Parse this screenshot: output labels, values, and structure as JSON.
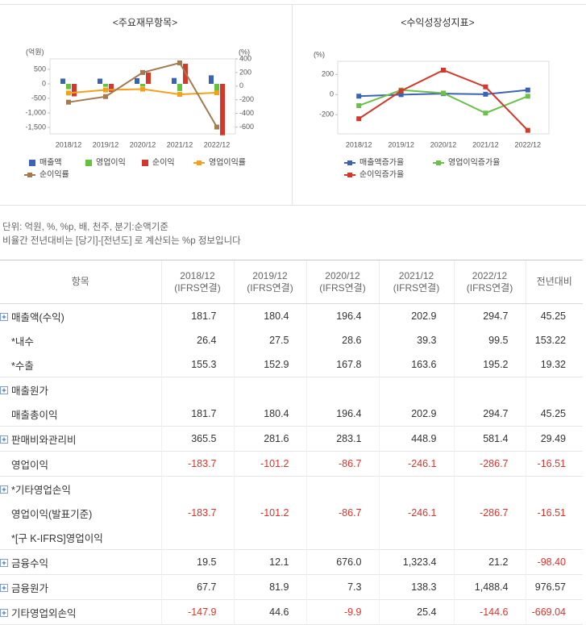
{
  "chart_data": [
    {
      "type": "combo",
      "title": "<주요재무항목>",
      "ylabel": "(억원)",
      "y2label": "(%)",
      "categories": [
        "2018/12",
        "2019/12",
        "2020/12",
        "2021/12",
        "2022/12"
      ],
      "ylim": [
        -1720,
        860
      ],
      "yticks": [
        500,
        0,
        -500,
        {
          "value": -1000,
          "label": "-1,000"
        },
        {
          "value": -1500,
          "label": "-1,500"
        }
      ],
      "y2lim": [
        -700,
        400
      ],
      "y2ticks": [
        400,
        200,
        0,
        -200,
        -400,
        -600
      ],
      "series": [
        {
          "name": "매출액",
          "kind": "bar",
          "color": "#3b63b3",
          "values": [
            181.7,
            180.4,
            196.4,
            202.9,
            294.7
          ]
        },
        {
          "name": "영업이익",
          "kind": "bar",
          "color": "#62c43d",
          "values": [
            -183.7,
            -101.2,
            -86.7,
            -246.1,
            -286.7
          ]
        },
        {
          "name": "순이익",
          "kind": "bar",
          "color": "#d3382b",
          "values": [
            -430,
            -276,
            393,
            692,
            -1768
          ]
        },
        {
          "name": "영업이익률",
          "kind": "line",
          "axis": "y2",
          "color": "#f5a01a",
          "values": [
            -101,
            -56,
            -44,
            -121,
            -97
          ]
        },
        {
          "name": "순이익률",
          "kind": "line",
          "axis": "y2",
          "color": "#a47a4e",
          "values": [
            -235,
            -153,
            200,
            341,
            -600
          ]
        }
      ]
    },
    {
      "type": "line",
      "title": "<수익성장성지표>",
      "ylabel": "(%)",
      "categories": [
        "2018/12",
        "2019/12",
        "2020/12",
        "2021/12",
        "2022/12"
      ],
      "ylim": [
        -390,
        330
      ],
      "yticks": [
        200,
        0,
        -200
      ],
      "series": [
        {
          "name": "매출액증가율",
          "color": "#3b63b3",
          "values": [
            -16,
            -0.7,
            8.9,
            3.3,
            45.2
          ]
        },
        {
          "name": "영업이익증가율",
          "color": "#6cc04a",
          "values": [
            -110,
            44.9,
            14.3,
            -183.8,
            -16.5
          ]
        },
        {
          "name": "순이익증가율",
          "color": "#d3382b",
          "values": [
            -240,
            35.8,
            242,
            76,
            -355
          ]
        }
      ]
    }
  ],
  "notes": [
    "단위: 억원, %, %p, 배, 천주, 분기:순액기준",
    "비율간 전년대비는 [당기]-[전년도] 로 계산되는 %p 정보입니다"
  ],
  "table": {
    "item_header": "항목",
    "columns": [
      {
        "period": "2018/12",
        "basis": "(IFRS연결)"
      },
      {
        "period": "2019/12",
        "basis": "(IFRS연결)"
      },
      {
        "period": "2020/12",
        "basis": "(IFRS연결)"
      },
      {
        "period": "2021/12",
        "basis": "(IFRS연결)"
      },
      {
        "period": "2022/12",
        "basis": "(IFRS연결)"
      }
    ],
    "change_header": "전년대비",
    "groups": [
      [
        {
          "label": "매출액(수익)",
          "expandable": true,
          "cells": [
            "181.7",
            "180.4",
            "196.4",
            "202.9",
            "294.7",
            "45.25"
          ]
        },
        {
          "label": "*내수",
          "cells": [
            "26.4",
            "27.5",
            "28.6",
            "39.3",
            "99.5",
            "153.22"
          ]
        },
        {
          "label": "*수출",
          "cells": [
            "155.3",
            "152.9",
            "167.8",
            "163.6",
            "195.2",
            "19.32"
          ]
        }
      ],
      [
        {
          "label": "매출원가",
          "expandable": true,
          "cells": [
            null,
            null,
            null,
            null,
            null,
            null
          ]
        },
        {
          "label": "매출총이익",
          "cells": [
            "181.7",
            "180.4",
            "196.4",
            "202.9",
            "294.7",
            "45.25"
          ]
        }
      ],
      [
        {
          "label": "판매비와관리비",
          "expandable": true,
          "cells": [
            "365.5",
            "281.6",
            "283.1",
            "448.9",
            "581.4",
            "29.49"
          ]
        }
      ],
      [
        {
          "label": "영업이익",
          "cells": [
            "-183.7",
            "-101.2",
            "-86.7",
            "-246.1",
            "-286.7",
            "-16.51"
          ]
        }
      ],
      [
        {
          "label": "*기타영업손익",
          "expandable": true,
          "cells": [
            null,
            null,
            null,
            null,
            null,
            null
          ]
        },
        {
          "label": "영업이익(발표기준)",
          "cells": [
            "-183.7",
            "-101.2",
            "-86.7",
            "-246.1",
            "-286.7",
            "-16.51"
          ]
        },
        {
          "label": "*[구 K-IFRS]영업이익",
          "cells": [
            null,
            null,
            null,
            null,
            null,
            null
          ]
        }
      ],
      [
        {
          "label": "금융수익",
          "expandable": true,
          "cells": [
            "19.5",
            "12.1",
            "676.0",
            "1,323.4",
            "21.2",
            "-98.40"
          ]
        }
      ],
      [
        {
          "label": "금융원가",
          "expandable": true,
          "cells": [
            "67.7",
            "81.9",
            "7.3",
            "138.3",
            "1,488.4",
            "976.57"
          ]
        }
      ],
      [
        {
          "label": "기타영업외손익",
          "expandable": true,
          "cells": [
            "-147.9",
            "44.6",
            "-9.9",
            "25.4",
            "-144.6",
            "-669.04"
          ]
        }
      ]
    ]
  }
}
